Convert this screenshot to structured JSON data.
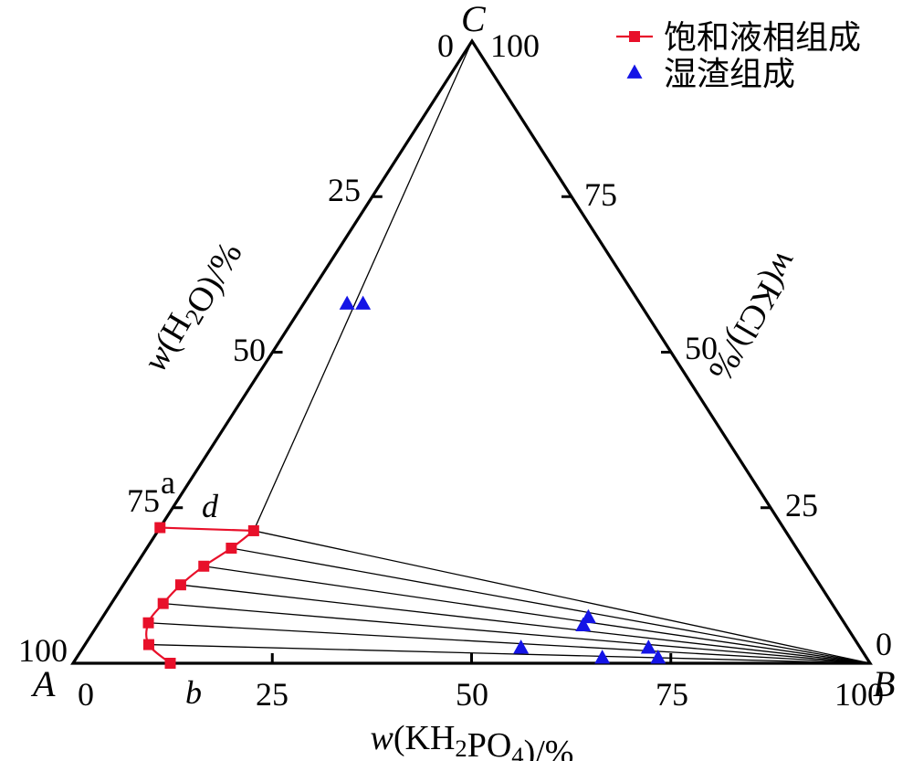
{
  "chart_data": {
    "type": "scatter",
    "subtype": "ternary-phase-diagram",
    "vertices": {
      "A": "A",
      "B": "B",
      "C": "C"
    },
    "axes": {
      "bottom": {
        "label": "w(KH2PO4)/%",
        "ticks": [
          "0",
          "25",
          "50",
          "75",
          "100"
        ]
      },
      "left": {
        "label": "w(H2O)/%",
        "ticks": [
          "0",
          "25",
          "50",
          "75",
          "100"
        ]
      },
      "right": {
        "label": "w(KCl)/%",
        "ticks": [
          "0",
          "25",
          "50",
          "75",
          "100"
        ]
      }
    },
    "point_labels": [
      "a",
      "b",
      "d"
    ],
    "legend": {
      "position": "top-right",
      "entries": [
        {
          "label": "饱和液相组成",
          "marker": "square",
          "color": "#e8102a"
        },
        {
          "label": "湿渣组成",
          "marker": "triangle",
          "color": "#1414e6"
        }
      ]
    },
    "series": [
      {
        "name": "饱和液相组成",
        "color": "#e8102a",
        "points": [
          {
            "label": "b",
            "kh2po4": 12.2,
            "kcl": 0.0
          },
          {
            "kh2po4": 8.0,
            "kcl": 3.0
          },
          {
            "kh2po4": 6.2,
            "kcl": 6.5
          },
          {
            "kh2po4": 6.5,
            "kcl": 9.6
          },
          {
            "kh2po4": 7.2,
            "kcl": 12.6
          },
          {
            "kh2po4": 8.6,
            "kcl": 15.6
          },
          {
            "kh2po4": 10.6,
            "kcl": 18.5
          },
          {
            "label": "d",
            "kh2po4": 12.0,
            "kcl": 21.3
          },
          {
            "label": "a",
            "kh2po4": 0.0,
            "kcl": 21.8
          }
        ]
      },
      {
        "name": "湿渣组成",
        "color": "#1414e6",
        "points": [
          {
            "kh2po4": 66.0,
            "kcl": 0.8
          },
          {
            "kh2po4": 73.0,
            "kcl": 0.8
          },
          {
            "kh2po4": 55.0,
            "kcl": 2.4
          },
          {
            "kh2po4": 71.0,
            "kcl": 2.4
          },
          {
            "kh2po4": 61.0,
            "kcl": 6.0
          },
          {
            "kh2po4": 61.0,
            "kcl": 7.3
          },
          {
            "kh2po4": 5.5,
            "kcl": 57.7
          },
          {
            "kh2po4": 7.5,
            "kcl": 57.7
          }
        ]
      }
    ],
    "tie_lines": {
      "to_B_from": [
        {
          "kh2po4": 12.2,
          "kcl": 0.0
        },
        {
          "kh2po4": 8.0,
          "kcl": 3.0
        },
        {
          "kh2po4": 6.2,
          "kcl": 6.5
        },
        {
          "kh2po4": 6.5,
          "kcl": 9.6
        },
        {
          "kh2po4": 7.2,
          "kcl": 12.6
        },
        {
          "kh2po4": 8.6,
          "kcl": 15.6
        },
        {
          "kh2po4": 10.6,
          "kcl": 18.5
        },
        {
          "kh2po4": 12.0,
          "kcl": 21.3
        }
      ],
      "to_C_from": [
        {
          "kh2po4": 0.0,
          "kcl": 21.8
        },
        {
          "kh2po4": 12.0,
          "kcl": 21.3
        }
      ]
    }
  }
}
